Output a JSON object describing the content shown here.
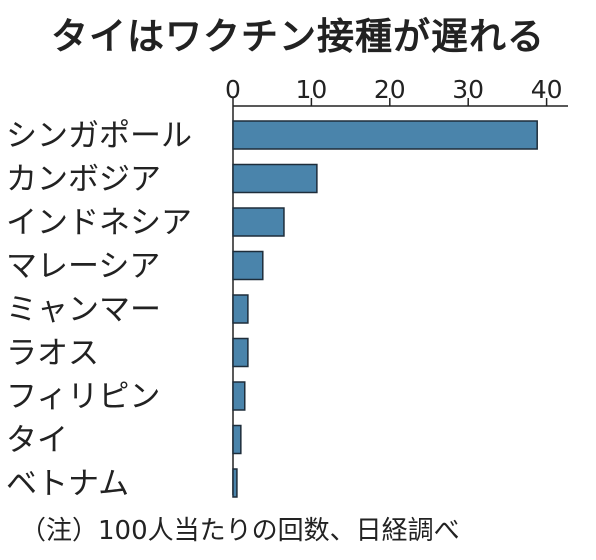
{
  "chart_data": {
    "type": "bar",
    "orientation": "horizontal",
    "title": "タイはワクチン接種が遅れる",
    "note": "（注）100人当たりの回数、日経調べ",
    "categories": [
      "シンガポール",
      "カンボジア",
      "インドネシア",
      "マレーシア",
      "ミャンマー",
      "ラオス",
      "フィリピン",
      "タイ",
      "ベトナム"
    ],
    "values": [
      38.8,
      10.7,
      6.5,
      3.8,
      1.9,
      1.9,
      1.5,
      1.0,
      0.5
    ],
    "xlim": [
      0,
      43
    ],
    "xticks": [
      0,
      10,
      20,
      30,
      40
    ],
    "tick_labels": [
      "0",
      "10",
      "20",
      "30",
      "40"
    ],
    "axis_position": "top",
    "grid": false,
    "bar_color": "#4a84ab",
    "bar_edge_color": "#1e2d3a"
  }
}
